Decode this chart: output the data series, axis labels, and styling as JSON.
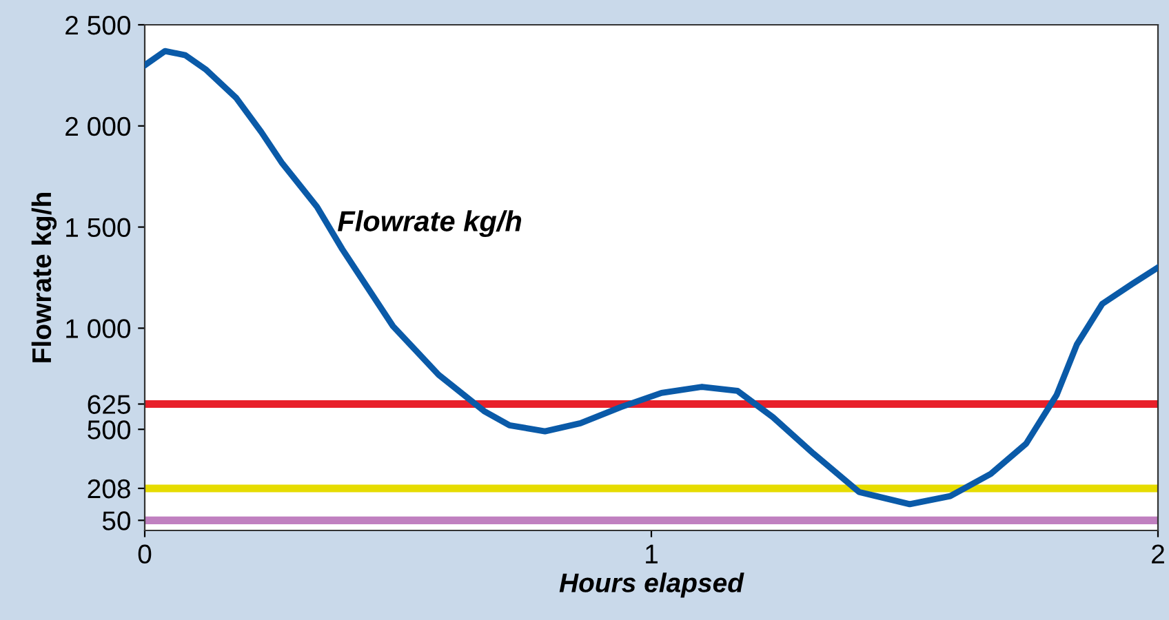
{
  "chart_data": {
    "type": "line",
    "xlabel": "Hours elapsed",
    "ylabel": "Flowrate kg/h",
    "x": [
      0,
      0.04,
      0.08,
      0.12,
      0.18,
      0.23,
      0.27,
      0.34,
      0.39,
      0.49,
      0.58,
      0.67,
      0.72,
      0.79,
      0.86,
      0.94,
      1.02,
      1.1,
      1.17,
      1.24,
      1.32,
      1.41,
      1.51,
      1.59,
      1.67,
      1.74,
      1.8,
      1.84,
      1.89,
      1.95,
      2.0
    ],
    "series": [
      {
        "name": "Flowrate kg/h",
        "color": "#0a5aa8",
        "values": [
          2300,
          2370,
          2350,
          2280,
          2140,
          1970,
          1820,
          1600,
          1390,
          1010,
          770,
          590,
          520,
          490,
          530,
          610,
          680,
          710,
          690,
          560,
          380,
          190,
          130,
          170,
          280,
          430,
          670,
          920,
          1120,
          1220,
          1300
        ]
      }
    ],
    "xlim": [
      0,
      2
    ],
    "ylim": [
      0,
      2500
    ],
    "xticks": [
      0,
      1,
      2
    ],
    "yticks": [
      50,
      208,
      {
        "value": 500,
        "label": "500"
      },
      625,
      {
        "value": 1000,
        "label": "1 000"
      },
      {
        "value": 1500,
        "label": "1 500"
      },
      {
        "value": 2000,
        "label": "2 000"
      },
      {
        "value": 2500,
        "label": "2 500"
      }
    ],
    "ref_lines": [
      {
        "axis": "y",
        "value": 625,
        "color": "#e8202a"
      },
      {
        "axis": "y",
        "value": 208,
        "color": "#e6dc00"
      },
      {
        "axis": "y",
        "value": 50,
        "color": "#c080c0"
      }
    ],
    "grid": false,
    "legend": false,
    "line_style": "solid",
    "marker": "none"
  }
}
